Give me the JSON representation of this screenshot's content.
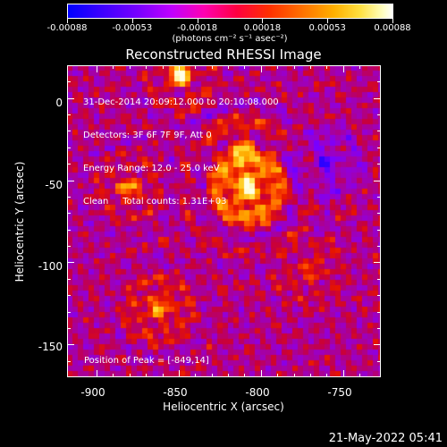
{
  "colorbar": {
    "tick_labels": [
      "-0.00088",
      "-0.00053",
      "-0.00018",
      "0.00018",
      "0.00053",
      "0.00088"
    ],
    "units": "(photons cm⁻² s⁻¹ asec⁻²)"
  },
  "plot": {
    "title": "Reconstructed RHESSI Image",
    "xlabel": "Heliocentric X (arcsec)",
    "ylabel": "Heliocentric Y (arcsec)",
    "xticks": [
      "-900",
      "-850",
      "-800",
      "-750"
    ],
    "yticks": [
      "0",
      "-50",
      "-100",
      "-150"
    ],
    "overlay_lines": [
      "31-Dec-2014 20:09:12.000 to 20:10:08.000",
      "Detectors: 3F 6F 7F 9F, Att 0",
      "Energy Range: 12.0 - 25.0 keV",
      "Clean     Total counts: 1.31E+03"
    ],
    "peak_text": "Position of Peak = [-849,14]"
  },
  "timestamp": "21-May-2022 05:41",
  "chart_data": {
    "type": "heatmap",
    "title": "Reconstructed RHESSI Image",
    "xlabel": "Heliocentric X (arcsec)",
    "ylabel": "Heliocentric Y (arcsec)",
    "xlim": [
      -918,
      -727
    ],
    "ylim": [
      -170,
      20
    ],
    "colorbar_range": [
      -0.00088,
      0.00088
    ],
    "colormap": "blue-purple-red-yellow-white",
    "peak_position": [
      -849,
      14
    ],
    "sources": [
      {
        "x": -808,
        "y": -55,
        "sigma": 13,
        "amp": 0.0008
      },
      {
        "x": -812,
        "y": -30,
        "sigma": 9,
        "amp": 0.00045
      },
      {
        "x": -880,
        "y": -55,
        "sigma": 8,
        "amp": 0.0005
      },
      {
        "x": -862,
        "y": -128,
        "sigma": 10,
        "amp": 0.0005
      },
      {
        "x": -849,
        "y": 14,
        "sigma": 7,
        "amp": 0.00085
      },
      {
        "x": -770,
        "y": -105,
        "sigma": 10,
        "amp": 0.00025
      },
      {
        "x": -760,
        "y": -40,
        "sigma": 12,
        "amp": -0.0003
      }
    ]
  }
}
